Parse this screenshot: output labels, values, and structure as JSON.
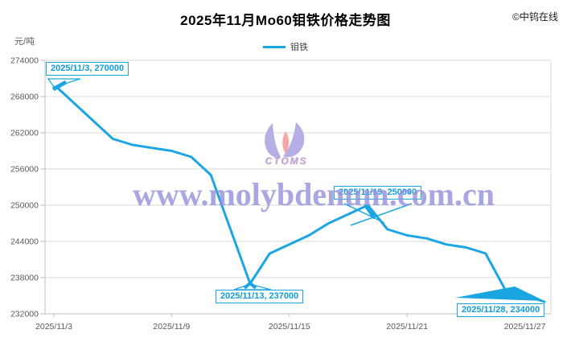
{
  "chart": {
    "title": "2025年11月Mo60钼铁价格走势图",
    "copyright": "©中钨在线",
    "y_axis_unit": "元/吨",
    "legend_label": "钼铁"
  },
  "watermark": {
    "text": "www.molybdenum.com.cn",
    "logo_text": "CTOMS",
    "text_color": "#9390dd",
    "logo_blue": "#b4afe5",
    "logo_pink": "#f6a6a8"
  },
  "chart_data": {
    "type": "line",
    "title": "2025年11月Mo60钼铁价格走势图",
    "ylabel": "元/吨",
    "xlabel": "",
    "grid": true,
    "legend_position": "top",
    "series": [
      {
        "name": "钼铁",
        "color": "#1ba6e3",
        "x": [
          "2025/11/3",
          "2025/11/4",
          "2025/11/5",
          "2025/11/6",
          "2025/11/7",
          "2025/11/8",
          "2025/11/9",
          "2025/11/10",
          "2025/11/11",
          "2025/11/12",
          "2025/11/13",
          "2025/11/14",
          "2025/11/15",
          "2025/11/16",
          "2025/11/17",
          "2025/11/18",
          "2025/11/19",
          "2025/11/20",
          "2025/11/21",
          "2025/11/22",
          "2025/11/23",
          "2025/11/24",
          "2025/11/25",
          "2025/11/26",
          "2025/11/27",
          "2025/11/28"
        ],
        "values": [
          270000,
          267000,
          264000,
          261000,
          260000,
          259500,
          259000,
          258000,
          255000,
          246000,
          237000,
          242000,
          243500,
          245000,
          247000,
          248500,
          250000,
          246000,
          245000,
          244500,
          243500,
          243000,
          242000,
          236000,
          235000,
          234000
        ]
      }
    ],
    "ylim": [
      232000,
      274000
    ],
    "y_ticks": [
      274000,
      268000,
      262000,
      256000,
      250000,
      244000,
      238000,
      232000
    ],
    "x_tick_labels": [
      "2025/11/3",
      "2025/11/9",
      "2025/11/15",
      "2025/11/21",
      "2025/11/27"
    ],
    "x_tick_indices": [
      0,
      6,
      12,
      18,
      24
    ],
    "annotations": [
      {
        "label": "2025/11/3, 270000",
        "date": "2025/11/3",
        "value": 270000
      },
      {
        "label": "2025/11/13, 237000",
        "date": "2025/11/13",
        "value": 237000
      },
      {
        "label": "2025/11/19, 250000",
        "date": "2025/11/19",
        "value": 250000
      },
      {
        "label": "2025/11/28, 234000",
        "date": "2025/11/28",
        "value": 234000
      }
    ],
    "colors": {
      "line": "#1ba6e3",
      "grid": "#d9d9d9",
      "axis": "#bfbfbf",
      "tick_text": "#595959"
    }
  }
}
